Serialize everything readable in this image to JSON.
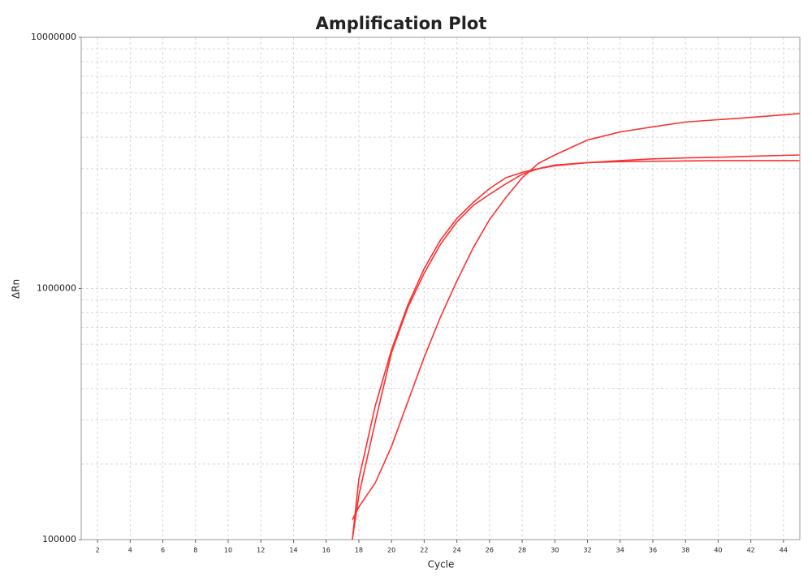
{
  "chart_data": {
    "type": "line",
    "title": "Amplification Plot",
    "x_label": "Cycle",
    "y_label": "ΔRn",
    "x": [
      17.6,
      18,
      19,
      20,
      21,
      22,
      23,
      24,
      25,
      26,
      27,
      28,
      29,
      30,
      32,
      34,
      36,
      38,
      40,
      42,
      45
    ],
    "series": [
      {
        "color": "#ff3030",
        "values": [
          100000,
          174000,
          340000,
          570000,
          860000,
          1200000,
          1560000,
          1900000,
          2200000,
          2500000,
          2760000,
          2900000,
          3000000,
          3100000,
          3170000,
          3230000,
          3280000,
          3310000,
          3330000,
          3360000,
          3400000
        ]
      },
      {
        "color": "#ff3030",
        "values": [
          100000,
          150000,
          293000,
          555000,
          840000,
          1150000,
          1500000,
          1840000,
          2140000,
          2370000,
          2610000,
          2850000,
          3000000,
          3080000,
          3170000,
          3200000,
          3210000,
          3220000,
          3230000,
          3230000,
          3230000
        ]
      },
      {
        "color": "#ff3030",
        "values": [
          120000,
          135000,
          168000,
          235000,
          354000,
          532000,
          770000,
          1070000,
          1450000,
          1880000,
          2300000,
          2760000,
          3150000,
          3400000,
          3900000,
          4200000,
          4400000,
          4600000,
          4700000,
          4800000,
          4970000
        ]
      }
    ],
    "xlim": [
      1,
      45
    ],
    "xticks": [
      2,
      4,
      6,
      8,
      10,
      12,
      14,
      16,
      18,
      20,
      22,
      24,
      26,
      28,
      30,
      32,
      34,
      36,
      38,
      40,
      42,
      44
    ],
    "ylim": [
      100000,
      10000000
    ],
    "yticks": [
      100000,
      1000000,
      10000000
    ],
    "log_y": true,
    "grid": true
  }
}
